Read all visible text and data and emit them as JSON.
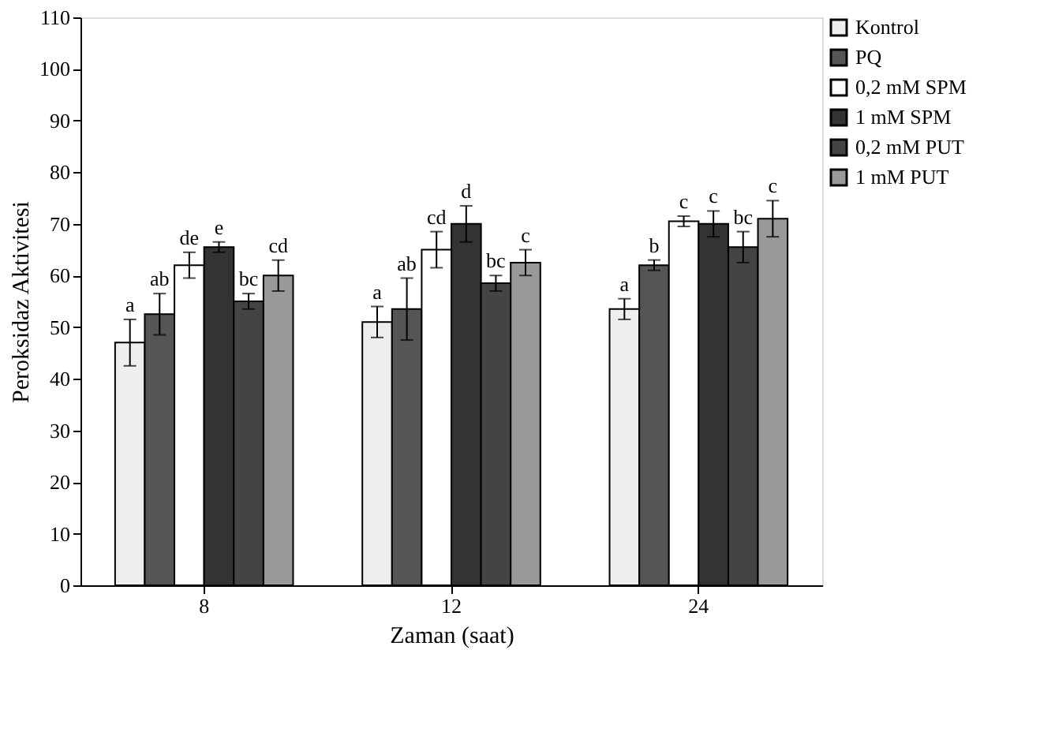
{
  "chart_data": {
    "type": "bar",
    "xlabel": "Zaman (saat)",
    "ylabel": "Peroksidaz Aktivitesi",
    "categories": [
      "8",
      "12",
      "24"
    ],
    "ylim": [
      0,
      110
    ],
    "yticks": [
      0,
      10,
      20,
      30,
      40,
      50,
      60,
      70,
      80,
      90,
      100,
      110
    ],
    "grid": false,
    "legend": "top right",
    "series": [
      {
        "name": "Kontrol",
        "color": "#eeeeee",
        "values": [
          47,
          51,
          53.5
        ],
        "errors": [
          4.5,
          3,
          2
        ],
        "value_labels": [
          "a",
          "a",
          "a"
        ]
      },
      {
        "name": "PQ",
        "color": "#555555",
        "values": [
          52.5,
          53.5,
          62
        ],
        "errors": [
          4,
          6,
          1
        ],
        "value_labels": [
          "ab",
          "ab",
          "b"
        ]
      },
      {
        "name": "0,2 mM SPM",
        "color": "#ffffff",
        "values": [
          62,
          65,
          70.5
        ],
        "errors": [
          2.5,
          3.5,
          1
        ],
        "value_labels": [
          "de",
          "cd",
          "c"
        ]
      },
      {
        "name": "1 mM SPM",
        "color": "#333333",
        "values": [
          65.5,
          70,
          70
        ],
        "errors": [
          1,
          3.5,
          2.5
        ],
        "value_labels": [
          "e",
          "d",
          "c"
        ]
      },
      {
        "name": "0,2 mM PUT",
        "color": "#444444",
        "values": [
          55,
          58.5,
          65.5
        ],
        "errors": [
          1.5,
          1.5,
          3
        ],
        "value_labels": [
          "bc",
          "bc",
          "bc"
        ]
      },
      {
        "name": "1 mM PUT",
        "color": "#999999",
        "values": [
          60,
          62.5,
          71
        ],
        "errors": [
          3,
          2.5,
          3.5
        ],
        "value_labels": [
          "cd",
          "c",
          "c"
        ]
      }
    ]
  }
}
